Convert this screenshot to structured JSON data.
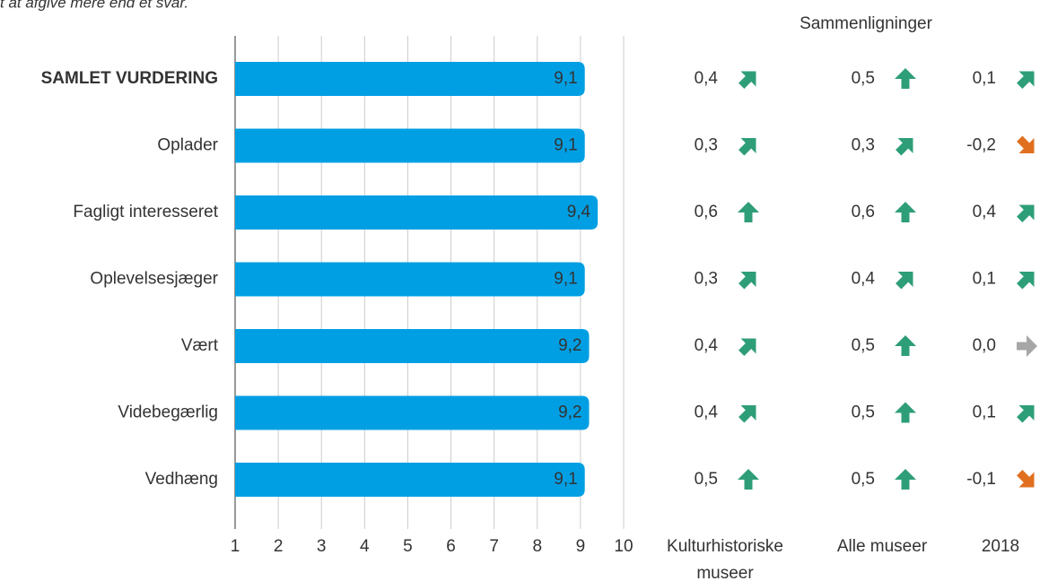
{
  "note_text": "t at afgive mere end et svar.",
  "chart_data": {
    "type": "bar",
    "orientation": "horizontal",
    "categories": [
      "SAMLET VURDERING",
      "Oplader",
      "Fagligt interesseret",
      "Oplevelsesjæger",
      "Vært",
      "Videbegærlig",
      "Vedhæng"
    ],
    "values": [
      9.1,
      9.1,
      9.4,
      9.1,
      9.2,
      9.2,
      9.1
    ],
    "value_labels": [
      "9,1",
      "9,1",
      "9,4",
      "9,1",
      "9,2",
      "9,2",
      "9,1"
    ],
    "color": "#009fe3",
    "xlim": [
      1,
      10
    ],
    "xticks": [
      1,
      2,
      3,
      4,
      5,
      6,
      7,
      8,
      9,
      10
    ],
    "grid": true
  },
  "comparisons": {
    "title": "Sammenligninger",
    "columns": [
      {
        "name": [
          "Kulturhistoriske",
          "museer"
        ],
        "values": [
          0.4,
          0.3,
          0.6,
          0.3,
          0.4,
          0.4,
          0.5
        ],
        "value_labels": [
          "0,4",
          "0,3",
          "0,6",
          "0,3",
          "0,4",
          "0,4",
          "0,5"
        ]
      },
      {
        "name": [
          "Alle museer"
        ],
        "values": [
          0.5,
          0.3,
          0.6,
          0.4,
          0.5,
          0.5,
          0.5
        ],
        "value_labels": [
          "0,5",
          "0,3",
          "0,6",
          "0,4",
          "0,5",
          "0,5",
          "0,5"
        ]
      },
      {
        "name": [
          "2018"
        ],
        "values": [
          0.1,
          -0.2,
          0.4,
          0.1,
          0.0,
          0.1,
          -0.1
        ],
        "value_labels": [
          "0,1",
          "-0,2",
          "0,4",
          "0,1",
          "0,0",
          "0,1",
          "-0,1"
        ]
      }
    ]
  }
}
